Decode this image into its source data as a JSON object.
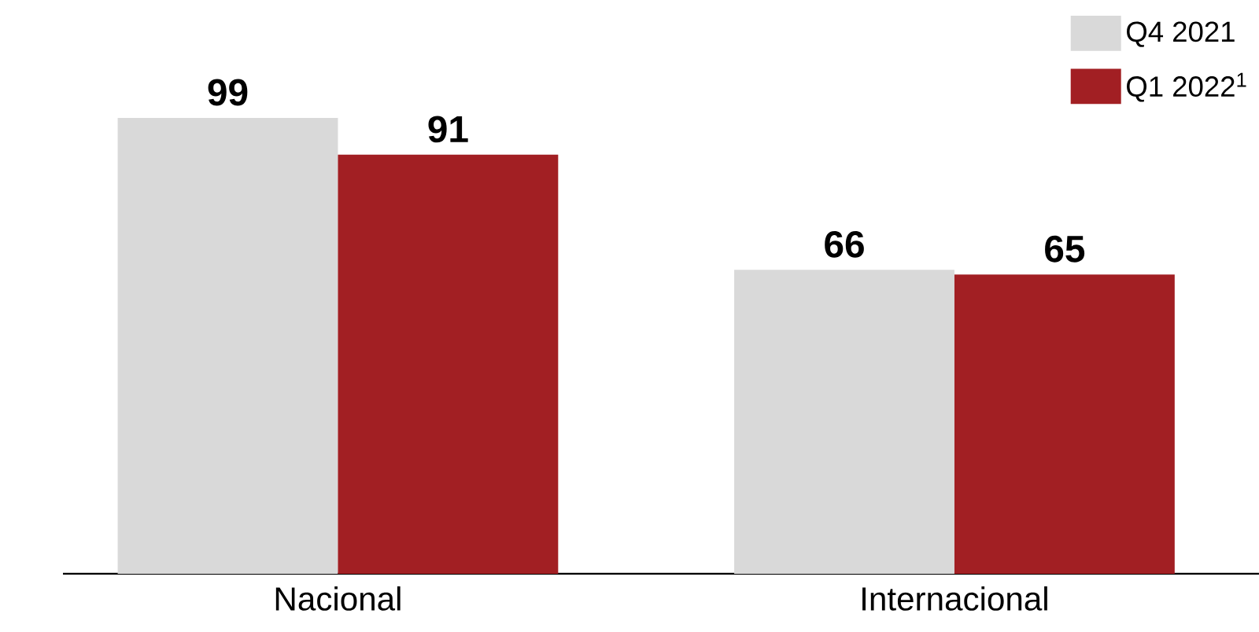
{
  "chart_data": {
    "type": "bar",
    "categories": [
      "Nacional",
      "Internacional"
    ],
    "series": [
      {
        "name": "Q4 2021",
        "color": "#d9d9d9",
        "values": [
          99,
          66
        ]
      },
      {
        "name": "Q1 2022$^{1}$",
        "color": "#a21f23",
        "values": [
          91,
          65
        ]
      }
    ],
    "ylim": [
      0,
      99
    ],
    "data_labels": true,
    "legend": "top right",
    "tick_labels": "x"
  }
}
